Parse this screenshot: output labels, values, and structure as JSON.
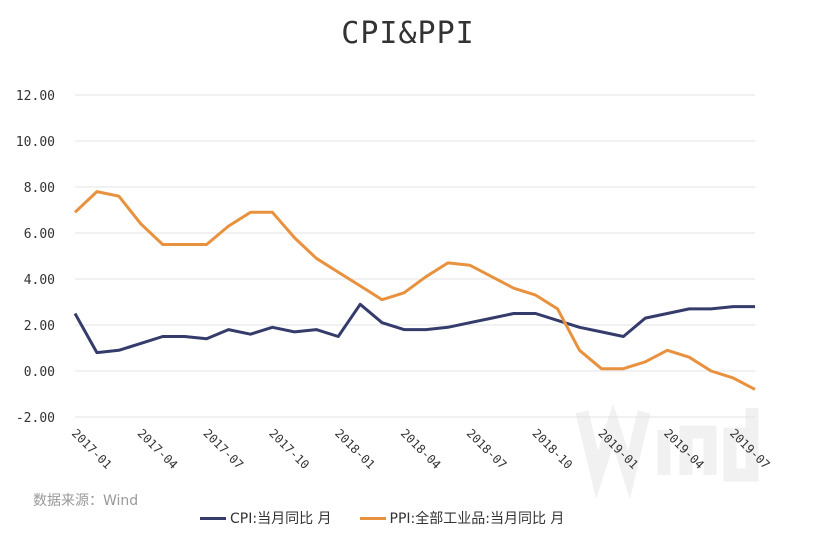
{
  "chart_data": {
    "type": "line",
    "title": "CPI&PPI",
    "x": [
      "2017-01",
      "2017-02",
      "2017-03",
      "2017-04",
      "2017-05",
      "2017-06",
      "2017-07",
      "2017-08",
      "2017-09",
      "2017-10",
      "2017-11",
      "2017-12",
      "2018-01",
      "2018-02",
      "2018-03",
      "2018-04",
      "2018-05",
      "2018-06",
      "2018-07",
      "2018-08",
      "2018-09",
      "2018-10",
      "2018-11",
      "2018-12",
      "2019-01",
      "2019-02",
      "2019-03",
      "2019-04",
      "2019-05",
      "2019-06",
      "2019-07",
      "2019-08"
    ],
    "x_tick_labels": [
      "2017-01",
      "2017-04",
      "2017-07",
      "2017-10",
      "2018-01",
      "2018-04",
      "2018-07",
      "2018-10",
      "2019-01",
      "2019-04",
      "2019-07"
    ],
    "y_tick_labels": [
      "12.00",
      "10.00",
      "8.00",
      "6.00",
      "4.00",
      "2.00",
      "0.00",
      "-2.00"
    ],
    "ylim": [
      -2,
      12
    ],
    "grid": true,
    "legend": "bottom",
    "series": [
      {
        "name": "CPI:当月同比 月",
        "color": "#353c6b",
        "values": [
          2.5,
          0.8,
          0.9,
          1.2,
          1.5,
          1.5,
          1.4,
          1.8,
          1.6,
          1.9,
          1.7,
          1.8,
          1.5,
          2.9,
          2.1,
          1.8,
          1.8,
          1.9,
          2.1,
          2.3,
          2.5,
          2.5,
          2.2,
          1.9,
          1.7,
          1.5,
          2.3,
          2.5,
          2.7,
          2.7,
          2.8,
          2.8
        ]
      },
      {
        "name": "PPI:全部工业品:当月同比 月",
        "color": "#e8913e",
        "values": [
          6.9,
          7.8,
          7.6,
          6.4,
          5.5,
          5.5,
          5.5,
          6.3,
          6.9,
          6.9,
          5.8,
          4.9,
          4.3,
          3.7,
          3.1,
          3.4,
          4.1,
          4.7,
          4.6,
          4.1,
          3.6,
          3.3,
          2.7,
          0.9,
          0.1,
          0.1,
          0.4,
          0.9,
          0.6,
          0.0,
          -0.3,
          -0.8
        ]
      }
    ]
  },
  "source": "数据来源：Wind",
  "watermark": "Wind"
}
